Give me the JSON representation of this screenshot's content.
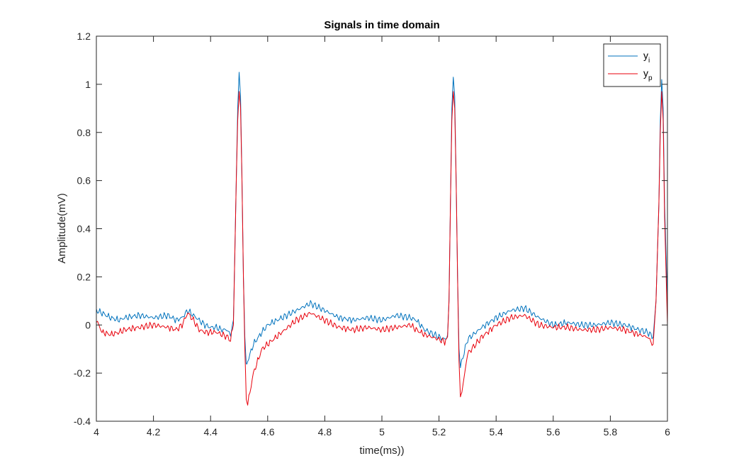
{
  "chart_data": {
    "type": "line",
    "title": "Signals in time domain",
    "xlabel": "time(ms))",
    "ylabel": "Amplitude(mV)",
    "xlim": [
      4,
      6
    ],
    "ylim": [
      -0.4,
      1.2
    ],
    "x_ticks": [
      "4",
      "4.2",
      "4.4",
      "4.6",
      "4.8",
      "5",
      "5.2",
      "5.4",
      "5.6",
      "5.8",
      "6"
    ],
    "y_ticks": [
      "-0.4",
      "-0.2",
      "0",
      "0.2",
      "0.4",
      "0.6",
      "0.8",
      "1",
      "1.2"
    ],
    "grid": false,
    "legend_position": "top-right",
    "series": [
      {
        "name": "y_i",
        "legend_base": "y",
        "legend_sub": "i",
        "color": "#0072BD",
        "points": [
          [
            4.0,
            0.06
          ],
          [
            4.02,
            0.05
          ],
          [
            4.05,
            0.03
          ],
          [
            4.08,
            0.02
          ],
          [
            4.1,
            0.03
          ],
          [
            4.15,
            0.04
          ],
          [
            4.2,
            0.03
          ],
          [
            4.25,
            0.04
          ],
          [
            4.28,
            0.02
          ],
          [
            4.3,
            0.03
          ],
          [
            4.32,
            0.06
          ],
          [
            4.34,
            0.04
          ],
          [
            4.36,
            0.02
          ],
          [
            4.38,
            0.0
          ],
          [
            4.4,
            -0.01
          ],
          [
            4.42,
            -0.01
          ],
          [
            4.44,
            -0.02
          ],
          [
            4.46,
            -0.02
          ],
          [
            4.47,
            -0.04
          ],
          [
            4.48,
            0.02
          ],
          [
            4.485,
            0.3
          ],
          [
            4.49,
            0.6
          ],
          [
            4.495,
            0.9
          ],
          [
            4.5,
            1.05
          ],
          [
            4.505,
            0.95
          ],
          [
            4.51,
            0.6
          ],
          [
            4.515,
            0.2
          ],
          [
            4.52,
            -0.05
          ],
          [
            4.525,
            -0.17
          ],
          [
            4.53,
            -0.15
          ],
          [
            4.55,
            -0.08
          ],
          [
            4.58,
            -0.03
          ],
          [
            4.6,
            0.0
          ],
          [
            4.65,
            0.03
          ],
          [
            4.7,
            0.06
          ],
          [
            4.75,
            0.09
          ],
          [
            4.8,
            0.06
          ],
          [
            4.85,
            0.03
          ],
          [
            4.9,
            0.02
          ],
          [
            4.95,
            0.03
          ],
          [
            5.0,
            0.02
          ],
          [
            5.05,
            0.04
          ],
          [
            5.1,
            0.03
          ],
          [
            5.12,
            0.02
          ],
          [
            5.15,
            -0.02
          ],
          [
            5.2,
            -0.05
          ],
          [
            5.22,
            -0.06
          ],
          [
            5.23,
            -0.04
          ],
          [
            5.235,
            0.1
          ],
          [
            5.24,
            0.5
          ],
          [
            5.245,
            0.9
          ],
          [
            5.25,
            1.03
          ],
          [
            5.255,
            0.95
          ],
          [
            5.26,
            0.6
          ],
          [
            5.265,
            0.2
          ],
          [
            5.27,
            -0.1
          ],
          [
            5.275,
            -0.18
          ],
          [
            5.28,
            -0.15
          ],
          [
            5.3,
            -0.06
          ],
          [
            5.35,
            -0.01
          ],
          [
            5.4,
            0.03
          ],
          [
            5.45,
            0.06
          ],
          [
            5.5,
            0.07
          ],
          [
            5.55,
            0.03
          ],
          [
            5.6,
            0.0
          ],
          [
            5.65,
            0.01
          ],
          [
            5.7,
            0.0
          ],
          [
            5.75,
            0.0
          ],
          [
            5.8,
            0.01
          ],
          [
            5.85,
            0.0
          ],
          [
            5.9,
            -0.02
          ],
          [
            5.93,
            -0.03
          ],
          [
            5.95,
            -0.05
          ],
          [
            5.96,
            0.1
          ],
          [
            5.97,
            0.5
          ],
          [
            5.975,
            0.85
          ],
          [
            5.98,
            1.02
          ],
          [
            5.985,
            0.9
          ],
          [
            5.99,
            0.5
          ],
          [
            6.0,
            0.1
          ]
        ]
      },
      {
        "name": "y_p",
        "legend_base": "y",
        "legend_sub": "p",
        "color": "#E8000B",
        "points": [
          [
            4.0,
            0.02
          ],
          [
            4.02,
            -0.03
          ],
          [
            4.05,
            -0.04
          ],
          [
            4.08,
            -0.03
          ],
          [
            4.1,
            -0.02
          ],
          [
            4.15,
            -0.01
          ],
          [
            4.2,
            0.0
          ],
          [
            4.25,
            -0.01
          ],
          [
            4.28,
            -0.02
          ],
          [
            4.3,
            0.0
          ],
          [
            4.32,
            0.05
          ],
          [
            4.34,
            0.02
          ],
          [
            4.36,
            -0.02
          ],
          [
            4.38,
            -0.03
          ],
          [
            4.4,
            -0.03
          ],
          [
            4.42,
            -0.03
          ],
          [
            4.44,
            -0.04
          ],
          [
            4.46,
            -0.05
          ],
          [
            4.47,
            -0.06
          ],
          [
            4.48,
            0.0
          ],
          [
            4.485,
            0.3
          ],
          [
            4.49,
            0.6
          ],
          [
            4.495,
            0.85
          ],
          [
            4.5,
            0.97
          ],
          [
            4.505,
            0.9
          ],
          [
            4.51,
            0.6
          ],
          [
            4.515,
            0.2
          ],
          [
            4.52,
            -0.1
          ],
          [
            4.525,
            -0.3
          ],
          [
            4.53,
            -0.33
          ],
          [
            4.55,
            -0.2
          ],
          [
            4.58,
            -0.1
          ],
          [
            4.6,
            -0.08
          ],
          [
            4.65,
            -0.03
          ],
          [
            4.7,
            0.02
          ],
          [
            4.75,
            0.05
          ],
          [
            4.8,
            0.02
          ],
          [
            4.85,
            -0.01
          ],
          [
            4.9,
            -0.02
          ],
          [
            4.95,
            -0.01
          ],
          [
            5.0,
            -0.02
          ],
          [
            5.05,
            -0.01
          ],
          [
            5.1,
            0.0
          ],
          [
            5.12,
            -0.02
          ],
          [
            5.15,
            -0.04
          ],
          [
            5.2,
            -0.06
          ],
          [
            5.22,
            -0.07
          ],
          [
            5.23,
            -0.05
          ],
          [
            5.235,
            0.1
          ],
          [
            5.24,
            0.5
          ],
          [
            5.245,
            0.85
          ],
          [
            5.25,
            0.97
          ],
          [
            5.255,
            0.9
          ],
          [
            5.26,
            0.6
          ],
          [
            5.265,
            0.2
          ],
          [
            5.27,
            -0.15
          ],
          [
            5.275,
            -0.3
          ],
          [
            5.28,
            -0.28
          ],
          [
            5.3,
            -0.12
          ],
          [
            5.35,
            -0.05
          ],
          [
            5.4,
            0.0
          ],
          [
            5.45,
            0.03
          ],
          [
            5.5,
            0.04
          ],
          [
            5.55,
            0.0
          ],
          [
            5.6,
            -0.01
          ],
          [
            5.65,
            -0.01
          ],
          [
            5.7,
            -0.02
          ],
          [
            5.75,
            -0.02
          ],
          [
            5.8,
            -0.01
          ],
          [
            5.85,
            -0.02
          ],
          [
            5.9,
            -0.04
          ],
          [
            5.93,
            -0.05
          ],
          [
            5.95,
            -0.08
          ],
          [
            5.96,
            0.1
          ],
          [
            5.97,
            0.5
          ],
          [
            5.975,
            0.8
          ],
          [
            5.98,
            0.97
          ],
          [
            5.985,
            0.85
          ],
          [
            5.99,
            0.45
          ],
          [
            6.0,
            0.0
          ]
        ]
      }
    ]
  }
}
